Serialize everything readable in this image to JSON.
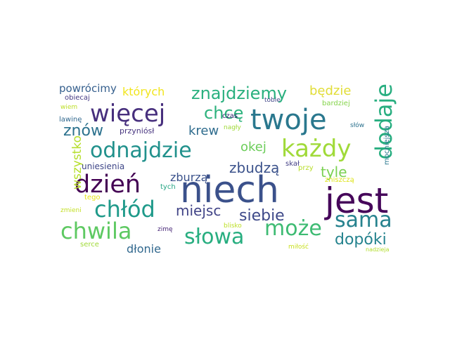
{
  "words": [
    {
      "id": "niech",
      "text": "niech",
      "color": "#3b518b"
    },
    {
      "id": "jest",
      "text": "jest",
      "color": "#46075a"
    },
    {
      "id": "twoje",
      "text": "twoje",
      "color": "#2a788e"
    },
    {
      "id": "wiecej",
      "text": "więcej",
      "color": "#472f7d"
    },
    {
      "id": "dzien",
      "text": "dzień",
      "color": "#440154"
    },
    {
      "id": "chlod",
      "text": "chłód",
      "color": "#1f9a8a"
    },
    {
      "id": "chwila",
      "text": "chwila",
      "color": "#5ec962"
    },
    {
      "id": "odnajdzie",
      "text": "odnajdzie",
      "color": "#21918c"
    },
    {
      "id": "kazdy",
      "text": "każdy",
      "color": "#a0da39"
    },
    {
      "id": "dodaje",
      "text": "dodaje",
      "color": "#28ae80"
    },
    {
      "id": "slowa",
      "text": "słowa",
      "color": "#28ae80"
    },
    {
      "id": "moze",
      "text": "może",
      "color": "#3ebb73"
    },
    {
      "id": "sama",
      "text": "sama",
      "color": "#26828e"
    },
    {
      "id": "znajdziemy",
      "text": "znajdziemy",
      "color": "#2ab07f"
    },
    {
      "id": "chce",
      "text": "chcę",
      "color": "#2db27d"
    },
    {
      "id": "znow",
      "text": "znów",
      "color": "#2c728e"
    },
    {
      "id": "siebie",
      "text": "siebie",
      "color": "#3e4989"
    },
    {
      "id": "dopoki",
      "text": "dopóki",
      "color": "#25838e"
    },
    {
      "id": "miejsc",
      "text": "miejsc",
      "color": "#414487"
    },
    {
      "id": "zbudza",
      "text": "zbudzą",
      "color": "#3b528b"
    },
    {
      "id": "okej",
      "text": "okej",
      "color": "#6ccd5a"
    },
    {
      "id": "tyle",
      "text": "tyle",
      "color": "#7ad151"
    },
    {
      "id": "krew",
      "text": "krew",
      "color": "#2f6c8e"
    },
    {
      "id": "bedzie",
      "text": "będzie",
      "color": "#e1dd37"
    },
    {
      "id": "ktorych",
      "text": "których",
      "color": "#f1e51d"
    },
    {
      "id": "powrocimy",
      "text": "powrócimy",
      "color": "#355f8d"
    },
    {
      "id": "wszystko",
      "text": "wszystko",
      "color": "#b5de2b"
    },
    {
      "id": "zburza",
      "text": "zburzą",
      "color": "#3b528b"
    },
    {
      "id": "dlonie",
      "text": "dłonie",
      "color": "#31688e"
    },
    {
      "id": "uniesienia",
      "text": "uniesienia",
      "color": "#3f4788"
    },
    {
      "id": "przyniosl",
      "text": "przyniósł",
      "color": "#46337e"
    },
    {
      "id": "obiecaj",
      "text": "obiecaj",
      "color": "#443983"
    },
    {
      "id": "wiem",
      "text": "wiem",
      "color": "#bddf26"
    },
    {
      "id": "lawine",
      "text": "lawinę",
      "color": "#31688e"
    },
    {
      "id": "mocniejsza",
      "text": "mocniejsza",
      "color": "#2a788e"
    },
    {
      "id": "zniszcza",
      "text": "zniszczą",
      "color": "#dde318"
    },
    {
      "id": "bardziej",
      "text": "bardziej",
      "color": "#84d44b"
    },
    {
      "id": "tobie",
      "text": "tobie",
      "color": "#404688"
    },
    {
      "id": "czas",
      "text": "czas",
      "color": "#2d1e6e"
    },
    {
      "id": "nagly",
      "text": "nagły",
      "color": "#a0da39"
    },
    {
      "id": "slow",
      "text": "słów",
      "color": "#2c728e"
    },
    {
      "id": "przy",
      "text": "przy",
      "color": "#b8de29"
    },
    {
      "id": "skal",
      "text": "skał",
      "color": "#433e85"
    },
    {
      "id": "tych",
      "text": "tych",
      "color": "#26a684"
    },
    {
      "id": "tego",
      "text": "tego",
      "color": "#e7e419"
    },
    {
      "id": "zmieni",
      "text": "zmieni",
      "color": "#c2df23"
    },
    {
      "id": "zime",
      "text": "zimę",
      "color": "#482878"
    },
    {
      "id": "blisko",
      "text": "blisko",
      "color": "#bddf26"
    },
    {
      "id": "serce",
      "text": "serce",
      "color": "#a0da39"
    },
    {
      "id": "milosc",
      "text": "miłość",
      "color": "#c8e020"
    },
    {
      "id": "nadzieja",
      "text": "nadzieja",
      "color": "#b2dd2d"
    }
  ]
}
